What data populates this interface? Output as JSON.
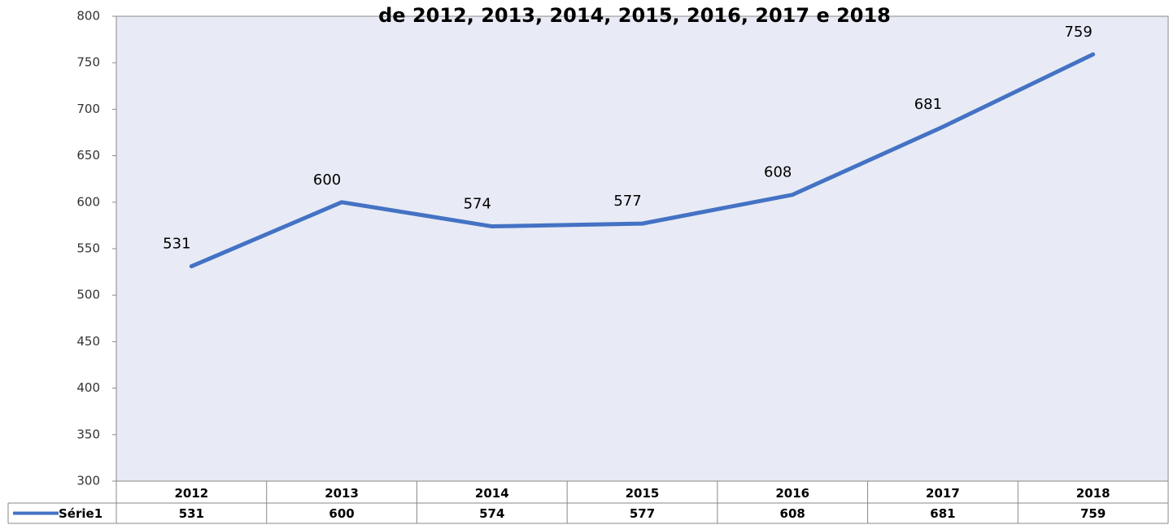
{
  "chart_data": {
    "type": "line",
    "title": "de  2012, 2013, 2014, 2015, 2016, 2017 e 2018",
    "categories": [
      "2012",
      "2013",
      "2014",
      "2015",
      "2016",
      "2017",
      "2018"
    ],
    "series": [
      {
        "name": "Série1",
        "color": "#4472c4",
        "values": [
          531,
          600,
          574,
          577,
          608,
          681,
          759
        ]
      }
    ],
    "ylim": [
      300,
      800
    ],
    "yticks": [
      300,
      350,
      400,
      450,
      500,
      550,
      600,
      650,
      700,
      750,
      800
    ]
  }
}
